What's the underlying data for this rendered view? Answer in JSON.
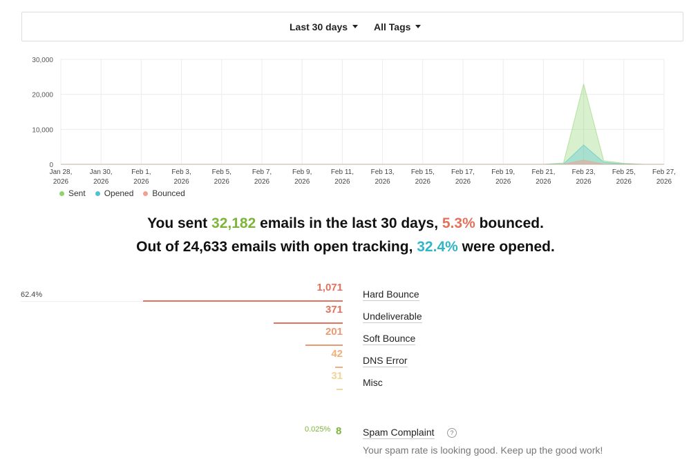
{
  "filters": {
    "range_label": "Last 30 days",
    "tags_label": "All Tags"
  },
  "chart_data": {
    "type": "area",
    "x": [
      "Jan 28, 2026",
      "Jan 29, 2026",
      "Jan 30, 2026",
      "Jan 31, 2026",
      "Feb 1, 2026",
      "Feb 2, 2026",
      "Feb 3, 2026",
      "Feb 4, 2026",
      "Feb 5, 2026",
      "Feb 6, 2026",
      "Feb 7, 2026",
      "Feb 8, 2026",
      "Feb 9, 2026",
      "Feb 10, 2026",
      "Feb 11, 2026",
      "Feb 12, 2026",
      "Feb 13, 2026",
      "Feb 14, 2026",
      "Feb 15, 2026",
      "Feb 16, 2026",
      "Feb 17, 2026",
      "Feb 18, 2026",
      "Feb 19, 2026",
      "Feb 20, 2026",
      "Feb 21, 2026",
      "Feb 22, 2026",
      "Feb 23, 2026",
      "Feb 24, 2026",
      "Feb 25, 2026",
      "Feb 26, 2026",
      "Feb 27, 2026"
    ],
    "tick_labels": [
      [
        "Jan 28,",
        "2026"
      ],
      [
        "Jan 30,",
        "2026"
      ],
      [
        "Feb 1,",
        "2026"
      ],
      [
        "Feb 3,",
        "2026"
      ],
      [
        "Feb 5,",
        "2026"
      ],
      [
        "Feb 7,",
        "2026"
      ],
      [
        "Feb 9,",
        "2026"
      ],
      [
        "Feb 11,",
        "2026"
      ],
      [
        "Feb 13,",
        "2026"
      ],
      [
        "Feb 15,",
        "2026"
      ],
      [
        "Feb 17,",
        "2026"
      ],
      [
        "Feb 19,",
        "2026"
      ],
      [
        "Feb 21,",
        "2026"
      ],
      [
        "Feb 23,",
        "2026"
      ],
      [
        "Feb 25,",
        "2026"
      ],
      [
        "Feb 27,",
        "2026"
      ]
    ],
    "series": [
      {
        "name": "Sent",
        "color": "#8fd36f",
        "values": [
          0,
          0,
          0,
          0,
          0,
          0,
          0,
          0,
          0,
          0,
          0,
          0,
          0,
          0,
          0,
          0,
          0,
          0,
          0,
          0,
          0,
          0,
          0,
          0,
          0,
          400,
          23000,
          1000,
          300,
          0,
          0
        ]
      },
      {
        "name": "Opened",
        "color": "#4dc3d2",
        "values": [
          0,
          0,
          0,
          0,
          0,
          0,
          0,
          0,
          0,
          0,
          0,
          0,
          0,
          0,
          0,
          0,
          0,
          0,
          0,
          0,
          0,
          0,
          0,
          0,
          0,
          100,
          5500,
          600,
          100,
          0,
          0
        ]
      },
      {
        "name": "Bounced",
        "color": "#f0a090",
        "values": [
          0,
          0,
          0,
          0,
          0,
          0,
          0,
          0,
          0,
          0,
          0,
          0,
          0,
          0,
          0,
          0,
          0,
          0,
          0,
          0,
          0,
          0,
          0,
          0,
          0,
          20,
          1200,
          60,
          10,
          0,
          0
        ]
      }
    ],
    "yticks": [
      "30,000",
      "20,000",
      "10,000",
      "0"
    ],
    "ylim": [
      0,
      30000
    ]
  },
  "summary": {
    "line1": {
      "a": "You sent ",
      "sent": "32,182",
      "b": " emails in the last 30 days, ",
      "bounce": "5.3%",
      "c": " bounced."
    },
    "line2": {
      "a": "Out of 24,633 emails with open tracking, ",
      "open": "32.4%",
      "b": " were opened."
    }
  },
  "bounces": {
    "top_pct": "62.4%",
    "items": [
      {
        "count": "1,071",
        "label": "Hard Bounce",
        "color": "#e2725b",
        "fraction": 0.624
      },
      {
        "count": "371",
        "label": "Undeliverable",
        "color": "#e2725b",
        "fraction": 0.216
      },
      {
        "count": "201",
        "label": "Soft Bounce",
        "color": "#ea9a73",
        "fraction": 0.117
      },
      {
        "count": "42",
        "label": "DNS Error",
        "color": "#f0b07a",
        "fraction": 0.024
      },
      {
        "count": "31",
        "label": "Misc",
        "color": "#f3d49a",
        "fraction": 0.018
      }
    ]
  },
  "spam": {
    "pct": "0.025%",
    "count": "8",
    "label": "Spam Complaint",
    "help": "?",
    "note": "Your spam rate is looking good. Keep up the good work!"
  }
}
